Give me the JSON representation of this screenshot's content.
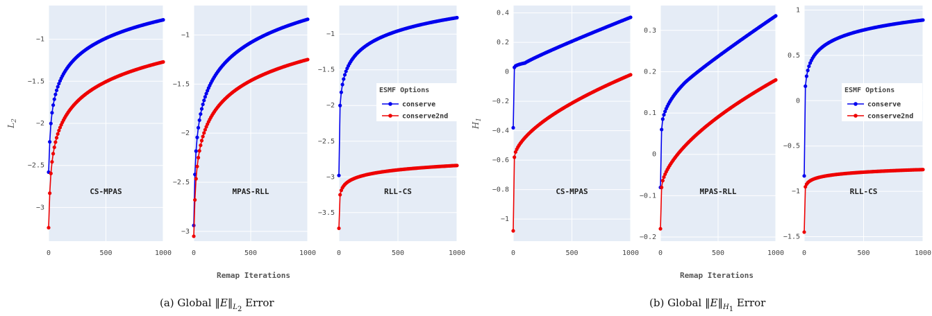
{
  "x_axis_label": "Remap Iterations",
  "captions": [
    {
      "prefix": "(a) Global ",
      "norm": "‖E‖",
      "sub": "L",
      "subsub": "2",
      "suffix": " Error"
    },
    {
      "prefix": "(b) Global ",
      "norm": "‖E‖",
      "sub": "H",
      "subsub": "1",
      "suffix": " Error"
    }
  ],
  "legend": {
    "title": "ESMF Options",
    "entries": [
      {
        "name": "conserve",
        "color": "#0000ee"
      },
      {
        "name": "conserve2nd",
        "color": "#ee0000"
      }
    ]
  },
  "colors": {
    "plot_bg": "#e5ecf6",
    "grid": "#ffffff",
    "conserve": "#0000ee",
    "conserve2nd": "#ee0000"
  },
  "chart_data": [
    {
      "type": "line",
      "label": "CS-MPAS",
      "ylabel": "L2",
      "xlim": [
        0,
        1000
      ],
      "ylim": [
        -3.4,
        -0.6
      ],
      "xticks": [
        0,
        500,
        1000
      ],
      "xtick_labels": [
        "0",
        "500",
        "1000"
      ],
      "yticks": [
        -3,
        -2.5,
        -2,
        -1.5,
        -1
      ],
      "ytick_labels": [
        "−3",
        "−2.5",
        "−2",
        "−1.5",
        "−1"
      ],
      "series": [
        {
          "name": "conserve",
          "shape": "log",
          "x0": 0,
          "y0": -2.58,
          "x1": 10,
          "y1": -2.22,
          "x_end": 1000,
          "y_end": -0.77
        },
        {
          "name": "conserve2nd",
          "shape": "log",
          "x0": 0,
          "y0": -3.24,
          "x1": 10,
          "y1": -2.83,
          "x_end": 1000,
          "y_end": -1.27
        }
      ]
    },
    {
      "type": "line",
      "label": "MPAS-RLL",
      "ylabel": "",
      "xlim": [
        0,
        1000
      ],
      "ylim": [
        -3.1,
        -0.7
      ],
      "xticks": [
        0,
        500,
        1000
      ],
      "xtick_labels": [
        "0",
        "500",
        "1000"
      ],
      "yticks": [
        -3,
        -2.5,
        -2,
        -1.5,
        -1
      ],
      "ytick_labels": [
        "−3",
        "−2.5",
        "−2",
        "−1.5",
        "−1"
      ],
      "series": [
        {
          "name": "conserve",
          "shape": "log",
          "x0": 0,
          "y0": -2.94,
          "x1": 10,
          "y1": -2.42,
          "x_end": 1000,
          "y_end": -0.84
        },
        {
          "name": "conserve2nd",
          "shape": "log",
          "x0": 0,
          "y0": -3.05,
          "x1": 10,
          "y1": -2.68,
          "x_end": 1000,
          "y_end": -1.25
        }
      ]
    },
    {
      "type": "line",
      "label": "RLL-CS",
      "ylabel": "",
      "xlim": [
        0,
        1000
      ],
      "ylim": [
        -3.9,
        -0.6
      ],
      "xticks": [
        0,
        500,
        1000
      ],
      "xtick_labels": [
        "0",
        "500",
        "1000"
      ],
      "yticks": [
        -3.5,
        -3,
        -2.5,
        -2,
        -1.5,
        -1
      ],
      "ytick_labels": [
        "−3.5",
        "−3",
        "−2.5",
        "−2",
        "−1.5",
        "−1"
      ],
      "legend": true,
      "series": [
        {
          "name": "conserve",
          "shape": "log",
          "x0": 0,
          "y0": -2.98,
          "x1": 10,
          "y1": -2.0,
          "x_end": 1000,
          "y_end": -0.77
        },
        {
          "name": "conserve2nd",
          "shape": "log",
          "x0": 0,
          "y0": -3.72,
          "x1": 10,
          "y1": -3.25,
          "x_end": 1000,
          "y_end": -2.84
        }
      ]
    },
    {
      "type": "line",
      "label": "CS-MPAS",
      "ylabel": "H1",
      "xlim": [
        0,
        1000
      ],
      "ylim": [
        -1.15,
        0.45
      ],
      "xticks": [
        0,
        500,
        1000
      ],
      "xtick_labels": [
        "0",
        "500",
        "1000"
      ],
      "yticks": [
        -1,
        -0.8,
        -0.6,
        -0.4,
        -0.2,
        0,
        0.2,
        0.4
      ],
      "ytick_labels": [
        "−1",
        "−0.8",
        "−0.6",
        "−0.4",
        "−0.2",
        "0",
        "0.2",
        "0.4"
      ],
      "series": [
        {
          "name": "conserve",
          "shape": "linear",
          "x0": 0,
          "y0": -0.38,
          "x1": 10,
          "y1": 0.03,
          "knee_x": 100,
          "knee_y": 0.06,
          "x_end": 1000,
          "y_end": 0.37
        },
        {
          "name": "conserve2nd",
          "shape": "power",
          "x0": 0,
          "y0": -1.08,
          "x1": 10,
          "y1": -0.58,
          "x_end": 1000,
          "y_end": -0.02
        }
      ]
    },
    {
      "type": "line",
      "label": "MPAS-RLL",
      "ylabel": "",
      "xlim": [
        0,
        1000
      ],
      "ylim": [
        -0.21,
        0.36
      ],
      "xticks": [
        0,
        500,
        1000
      ],
      "xtick_labels": [
        "0",
        "500",
        "1000"
      ],
      "yticks": [
        -0.2,
        -0.1,
        0,
        0.1,
        0.2,
        0.3
      ],
      "ytick_labels": [
        "−0.2",
        "−0.1",
        "0",
        "0.1",
        "0.2",
        "0.3"
      ],
      "series": [
        {
          "name": "conserve",
          "shape": "linear",
          "x0": 0,
          "y0": -0.08,
          "x1": 10,
          "y1": 0.06,
          "knee_x": 200,
          "knee_y": 0.17,
          "x_end": 1000,
          "y_end": 0.335
        },
        {
          "name": "conserve2nd",
          "shape": "power",
          "x0": 0,
          "y0": -0.18,
          "x1": 10,
          "y1": -0.08,
          "x_end": 1000,
          "y_end": 0.18
        }
      ]
    },
    {
      "type": "line",
      "label": "RLL-CS",
      "ylabel": "",
      "xlim": [
        0,
        1000
      ],
      "ylim": [
        -1.55,
        1.05
      ],
      "xticks": [
        0,
        500,
        1000
      ],
      "xtick_labels": [
        "0",
        "500",
        "1000"
      ],
      "yticks": [
        -1.5,
        -1,
        -0.5,
        0,
        0.5,
        1
      ],
      "ytick_labels": [
        "−1.5",
        "−1",
        "−0.5",
        "0",
        "0.5",
        "1"
      ],
      "legend": true,
      "series": [
        {
          "name": "conserve",
          "shape": "log",
          "x0": 0,
          "y0": -0.83,
          "x1": 10,
          "y1": 0.16,
          "x_end": 1000,
          "y_end": 0.89
        },
        {
          "name": "conserve2nd",
          "shape": "log",
          "x0": 0,
          "y0": -1.45,
          "x1": 10,
          "y1": -0.95,
          "x_end": 1000,
          "y_end": -0.76
        }
      ]
    }
  ]
}
